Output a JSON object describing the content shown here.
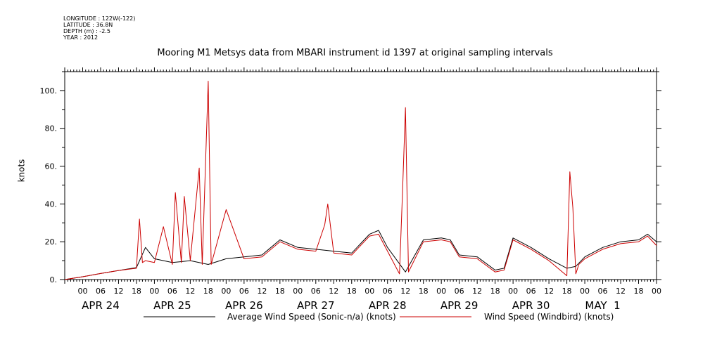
{
  "metadata": {
    "longitude": "LONGITUDE : 122W(-122)",
    "latitude": "LATITUDE : 36.8N",
    "depth": "DEPTH (m) : -2.5",
    "year": "YEAR : 2012"
  },
  "chart_data": {
    "type": "line",
    "title": "Mooring M1 Metsys data from MBARI instrument id 1397 at original sampling intervals",
    "xlabel": "",
    "ylabel": "knots",
    "xlim_hours": [
      -6,
      192
    ],
    "ylim": [
      0,
      110
    ],
    "y_ticks": [
      0,
      20,
      40,
      60,
      80,
      100
    ],
    "y_tick_labels": [
      "0.",
      "20.",
      "40.",
      "60.",
      "80.",
      "100."
    ],
    "x_hour_ticks": [
      0,
      6,
      12,
      18
    ],
    "x_hour_tick_labels": [
      "00",
      "06",
      "12",
      "18"
    ],
    "day_labels": [
      "APR 24",
      "APR 25",
      "APR 26",
      "APR 27",
      "APR 28",
      "APR 29",
      "APR 30",
      "MAY  1"
    ],
    "x_unit": "hours since APR 24 00:00 (2012)",
    "grid": false,
    "legend_position": "bottom",
    "series": [
      {
        "name": "Average Wind Speed (Sonic-n/a) (knots)",
        "color": "#000000",
        "x": [
          -6,
          0,
          6,
          12,
          18,
          21,
          24,
          30,
          36,
          42,
          48,
          54,
          60,
          66,
          72,
          78,
          84,
          90,
          96,
          99,
          102,
          108,
          114,
          120,
          123,
          126,
          132,
          138,
          141,
          144,
          150,
          156,
          162,
          165,
          168,
          174,
          180,
          186,
          189,
          192
        ],
        "values": [
          0,
          1.5,
          3.2,
          4.8,
          6.3,
          17,
          11,
          9,
          10,
          8,
          11,
          12,
          13,
          21,
          17,
          16,
          15,
          14,
          24,
          26,
          17,
          4,
          21,
          22,
          21,
          13,
          12,
          5,
          6,
          22,
          17,
          11,
          6,
          7,
          12,
          17,
          20,
          21,
          24,
          20
        ]
      },
      {
        "name": "Wind Speed (Windbird) (knots)",
        "color": "#cc0000",
        "x": [
          -6,
          0,
          6,
          12,
          18,
          19,
          20,
          21,
          24,
          27,
          30,
          31,
          33,
          34,
          36,
          39,
          40,
          42,
          43,
          48,
          54,
          60,
          66,
          72,
          78,
          81,
          82,
          84,
          90,
          96,
          99,
          102,
          106,
          107,
          108,
          109,
          114,
          120,
          123,
          126,
          132,
          138,
          141,
          144,
          150,
          156,
          162,
          163,
          164,
          165,
          166,
          168,
          174,
          180,
          186,
          189,
          192
        ],
        "values": [
          0,
          1.5,
          3.2,
          4.8,
          6,
          32,
          9,
          10,
          9,
          28,
          8,
          46,
          9,
          44,
          10,
          59,
          8,
          105,
          8,
          37,
          11,
          12,
          20,
          16,
          15,
          29,
          40,
          14,
          13,
          23,
          24,
          15,
          3,
          46,
          91,
          4,
          20,
          21,
          20,
          12,
          11,
          4,
          5,
          21,
          16,
          10,
          2,
          57,
          38,
          3,
          8,
          11,
          16,
          19,
          20,
          23,
          18
        ]
      }
    ]
  }
}
